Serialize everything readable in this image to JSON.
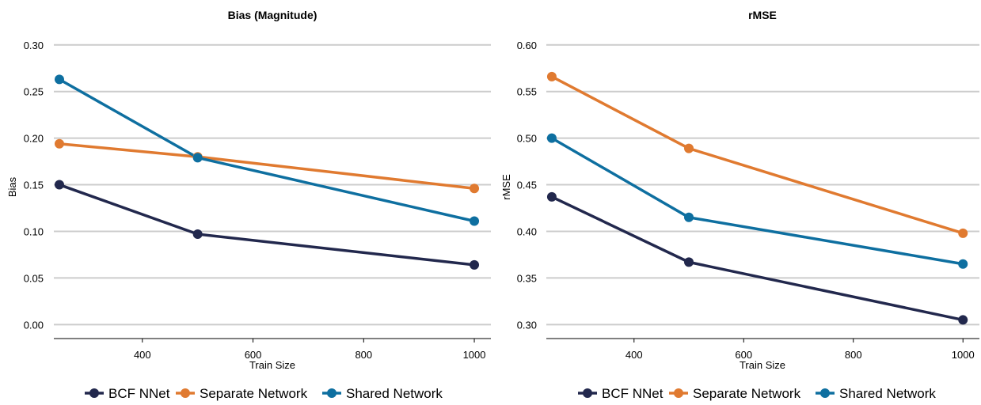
{
  "chart_data": [
    {
      "type": "line",
      "title": "Bias (Magnitude)",
      "xlabel": "Train Size",
      "ylabel": "Bias",
      "xlim": [
        240,
        1030
      ],
      "ylim": [
        -0.015,
        0.31
      ],
      "xticks": [
        "400",
        "600",
        "800",
        "1000"
      ],
      "yticks": [
        "0.00",
        "0.05",
        "0.10",
        "0.15",
        "0.20",
        "0.25",
        "0.30"
      ],
      "x": [
        250,
        500,
        1000
      ],
      "grid": true,
      "legend": "bottom",
      "series": [
        {
          "name": "BCF NNet",
          "color": "#22284d",
          "values": [
            0.15,
            0.097,
            0.064
          ]
        },
        {
          "name": "Separate Network",
          "color": "#e07a30",
          "values": [
            0.194,
            0.18,
            0.146
          ]
        },
        {
          "name": "Shared Network",
          "color": "#0e6fa0",
          "values": [
            0.263,
            0.179,
            0.111
          ]
        }
      ]
    },
    {
      "type": "line",
      "title": "rMSE",
      "xlabel": "Train Size",
      "ylabel": "rMSE",
      "xlim": [
        240,
        1030
      ],
      "ylim": [
        0.285,
        0.61
      ],
      "xticks": [
        "400",
        "600",
        "800",
        "1000"
      ],
      "yticks": [
        "0.30",
        "0.35",
        "0.40",
        "0.45",
        "0.50",
        "0.55",
        "0.60"
      ],
      "x": [
        250,
        500,
        1000
      ],
      "grid": true,
      "legend": "bottom",
      "series": [
        {
          "name": "BCF NNet",
          "color": "#22284d",
          "values": [
            0.437,
            0.367,
            0.305
          ]
        },
        {
          "name": "Separate Network",
          "color": "#e07a30",
          "values": [
            0.566,
            0.489,
            0.398
          ]
        },
        {
          "name": "Shared Network",
          "color": "#0e6fa0",
          "values": [
            0.5,
            0.415,
            0.365
          ]
        }
      ]
    }
  ]
}
